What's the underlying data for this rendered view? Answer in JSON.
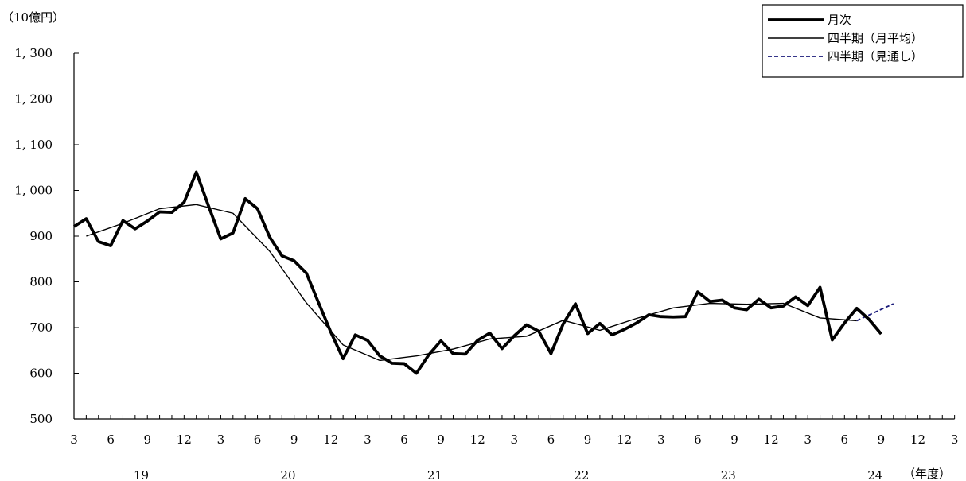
{
  "chart_data": {
    "type": "line",
    "y_unit_label": "（10億円）",
    "x_unit_label": "（年度）",
    "ylim": [
      500,
      1300
    ],
    "y_ticks": [
      500,
      600,
      700,
      800,
      900,
      1000,
      1100,
      1200,
      1300
    ],
    "y_tick_labels": [
      "500",
      "600",
      "700",
      "800",
      "900",
      "1, 000",
      "1, 100",
      "1, 200",
      "1, 300"
    ],
    "x_month_ticks": [
      "3",
      "6",
      "9",
      "12",
      "3",
      "6",
      "9",
      "12",
      "3",
      "6",
      "9",
      "12",
      "3",
      "6",
      "9",
      "12",
      "3",
      "6",
      "9",
      "12",
      "3",
      "6",
      "9",
      "12",
      "3"
    ],
    "x_year_labels": [
      "19",
      "20",
      "21",
      "22",
      "23",
      "24"
    ],
    "legend": {
      "position": "top-right"
    },
    "series": [
      {
        "name": "月次",
        "style": "thick-solid",
        "color": "#000000",
        "start_index": 0,
        "values": [
          921,
          938,
          888,
          879,
          934,
          916,
          933,
          953,
          952,
          974,
          1040,
          966,
          894,
          907,
          982,
          960,
          898,
          857,
          846,
          819,
          754,
          690,
          632,
          684,
          672,
          638,
          622,
          621,
          600,
          640,
          671,
          643,
          642,
          672,
          688,
          654,
          682,
          706,
          692,
          643,
          708,
          752,
          687,
          709,
          684,
          696,
          710,
          728,
          724,
          723,
          724,
          778,
          757,
          760,
          743,
          739,
          762,
          743,
          747,
          767,
          748,
          788,
          673,
          710,
          742,
          718,
          686
        ]
      },
      {
        "name": "四半期（月平均）",
        "style": "thin-solid",
        "color": "#000000",
        "start_index": 1,
        "values": [
          900,
          928,
          960,
          969,
          950,
          867,
          754,
          662,
          628,
          638,
          653,
          675,
          681,
          716,
          694,
          720,
          743,
          753,
          751,
          753,
          721,
          715
        ]
      },
      {
        "name": "四半期（見通し）",
        "style": "dashed",
        "color": "#1a1a7a",
        "start_index": 64,
        "values": [
          715,
          752
        ]
      }
    ]
  }
}
